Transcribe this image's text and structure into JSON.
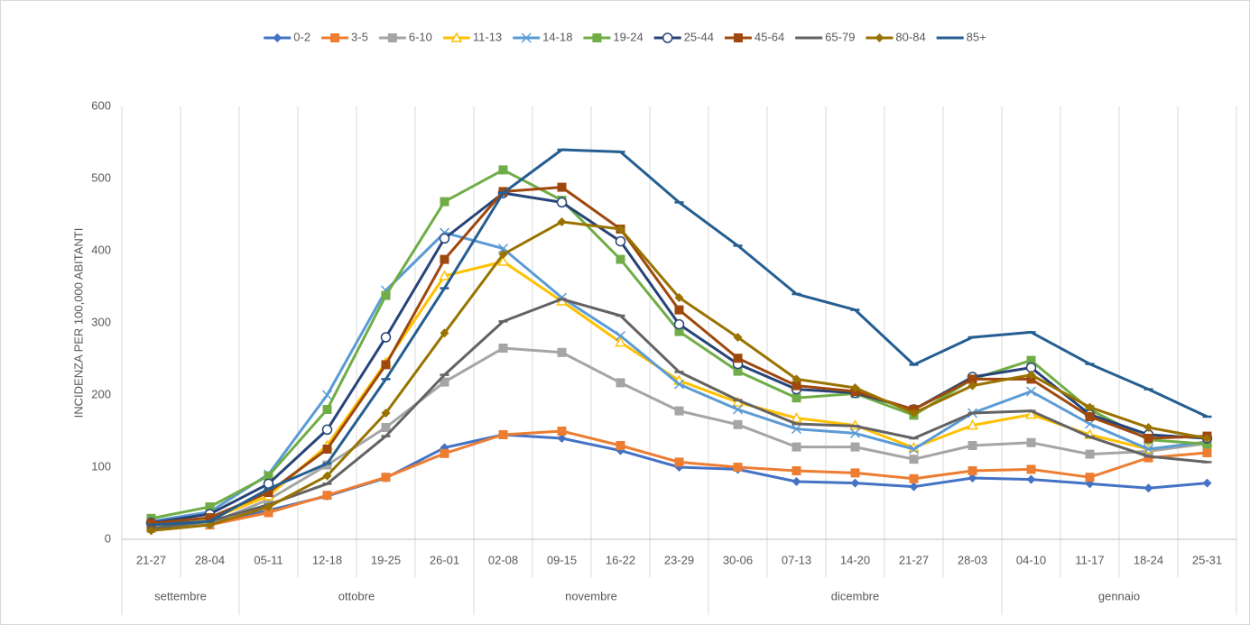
{
  "chart_data": {
    "type": "line",
    "y_title": "INCIDENZA PER 100,000 ABITANTI",
    "categories": [
      "21-27",
      "28-04",
      "05-11",
      "12-18",
      "19-25",
      "26-01",
      "02-08",
      "09-15",
      "16-22",
      "23-29",
      "30-06",
      "07-13",
      "14-20",
      "21-27",
      "28-03",
      "04-10",
      "11-17",
      "18-24",
      "25-31"
    ],
    "groups": [
      {
        "label": "settembre",
        "count": 2
      },
      {
        "label": "ottobre",
        "count": 4
      },
      {
        "label": "novembre",
        "count": 4
      },
      {
        "label": "dicembre",
        "count": 5
      },
      {
        "label": "gennaio",
        "count": 4
      }
    ],
    "ylim": [
      0,
      600
    ],
    "yticks": [
      0,
      100,
      200,
      300,
      400,
      500,
      600
    ],
    "legend": "top",
    "series": [
      {
        "name": "0-2",
        "color": "#4472c4",
        "marker": "diamond",
        "values": [
          20,
          22,
          40,
          60,
          85,
          127,
          145,
          140,
          123,
          100,
          97,
          80,
          78,
          73,
          85,
          83,
          77,
          71,
          78
        ]
      },
      {
        "name": "3-5",
        "color": "#ed7d31",
        "marker": "square",
        "values": [
          16,
          20,
          37,
          61,
          86,
          119,
          145,
          150,
          130,
          107,
          100,
          95,
          92,
          84,
          95,
          97,
          86,
          113,
          120
        ]
      },
      {
        "name": "6-10",
        "color": "#a5a5a5",
        "marker": "square",
        "values": [
          15,
          22,
          55,
          103,
          155,
          218,
          265,
          259,
          217,
          178,
          159,
          128,
          128,
          111,
          130,
          134,
          118,
          122,
          133
        ]
      },
      {
        "name": "11-13",
        "color": "#ffc000",
        "marker": "triangle",
        "values": [
          18,
          28,
          60,
          130,
          245,
          365,
          385,
          330,
          273,
          220,
          190,
          168,
          158,
          127,
          158,
          173,
          145,
          125,
          135
        ]
      },
      {
        "name": "14-18",
        "color": "#5b9bd5",
        "marker": "x",
        "values": [
          25,
          38,
          90,
          200,
          345,
          425,
          403,
          335,
          282,
          215,
          180,
          153,
          147,
          125,
          175,
          205,
          160,
          125,
          135
        ]
      },
      {
        "name": "19-24",
        "color": "#70ad47",
        "marker": "square",
        "values": [
          29,
          45,
          88,
          180,
          338,
          468,
          512,
          470,
          388,
          288,
          233,
          196,
          202,
          172,
          222,
          248,
          180,
          138,
          132
        ]
      },
      {
        "name": "25-44",
        "color": "#264478",
        "marker": "circle",
        "values": [
          23,
          35,
          77,
          152,
          280,
          417,
          480,
          467,
          413,
          298,
          243,
          208,
          203,
          180,
          225,
          238,
          173,
          145,
          140
        ]
      },
      {
        "name": "45-64",
        "color": "#9e480e",
        "marker": "square",
        "values": [
          22,
          30,
          65,
          125,
          242,
          388,
          482,
          488,
          430,
          318,
          251,
          213,
          205,
          180,
          222,
          222,
          170,
          140,
          143
        ]
      },
      {
        "name": "65-79",
        "color": "#636363",
        "marker": "dash",
        "values": [
          15,
          25,
          48,
          77,
          143,
          228,
          302,
          333,
          310,
          232,
          193,
          160,
          157,
          140,
          175,
          178,
          142,
          115,
          107
        ]
      },
      {
        "name": "80-84",
        "color": "#997300",
        "marker": "diamond",
        "values": [
          12,
          20,
          45,
          88,
          175,
          286,
          395,
          440,
          430,
          335,
          280,
          222,
          210,
          175,
          213,
          228,
          183,
          155,
          140
        ]
      },
      {
        "name": "85+",
        "color": "#255e91",
        "marker": "dash",
        "values": [
          20,
          25,
          70,
          105,
          222,
          348,
          480,
          540,
          537,
          467,
          407,
          340,
          318,
          242,
          280,
          287,
          243,
          208,
          170
        ]
      }
    ]
  }
}
